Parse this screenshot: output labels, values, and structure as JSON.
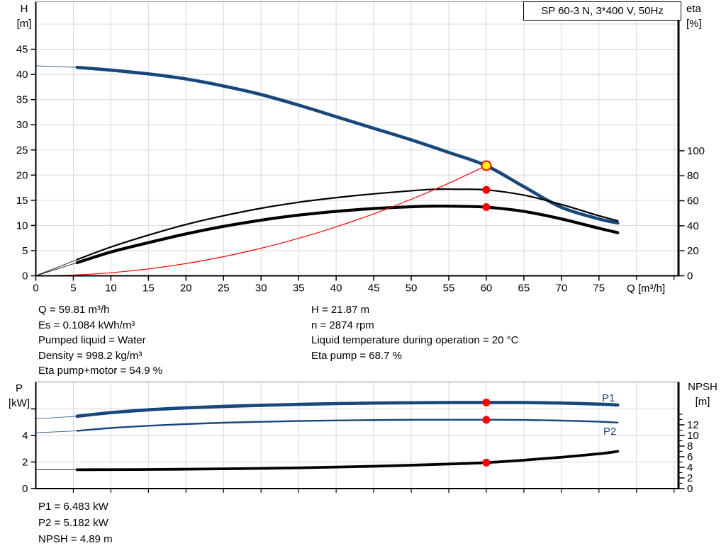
{
  "title_box": {
    "label": "SP 60-3 N, 3*400 V, 50Hz"
  },
  "colors": {
    "blue": "#17477d",
    "black": "#000000",
    "red": "#ff0000",
    "yellow": "#ffff00",
    "grid": "#d8d8d8",
    "border": "#8a8a8a"
  },
  "info_top_left": {
    "lines": [
      "Q = 59.81 m³/h",
      "Es = 0.1084 kWh/m³",
      "Pumped liquid = Water",
      "Density = 998.2 kg/m³",
      "Eta pump+motor = 54.9 %"
    ]
  },
  "info_top_right": {
    "lines": [
      "H = 21.87 m",
      "n = 2874 rpm",
      "Liquid temperature during operation = 20 °C",
      "Eta pump = 68.7 %"
    ]
  },
  "info_bottom": {
    "lines": [
      "P1 = 6.483 kW",
      "P2 = 5.182 kW",
      "NPSH = 4.89 m"
    ]
  },
  "chart_data": [
    {
      "id": "qh-chart",
      "type": "line",
      "title": "SP 60-3 N, 3*400 V, 50Hz",
      "xlabel": "Q [m³/h]",
      "ylabel_left": "H",
      "ylabel_left_unit": "[m]",
      "ylabel_right": "eta",
      "ylabel_right_unit": "[%]",
      "xlim": [
        0,
        85.5
      ],
      "ylim_left": [
        0,
        54.4
      ],
      "ylim_right": [
        0,
        219
      ],
      "x_ticks": [
        0,
        5,
        10,
        15,
        20,
        25,
        30,
        35,
        40,
        45,
        50,
        55,
        60,
        65,
        70,
        75
      ],
      "x_ticks_unlabeled": [
        80,
        85
      ],
      "left_ticks": [
        0,
        5,
        10,
        15,
        20,
        25,
        30,
        35,
        40,
        45
      ],
      "right_ticks": [
        0,
        20,
        40,
        60,
        80,
        100
      ],
      "grid_x": [
        5,
        10,
        15,
        20,
        25,
        30,
        35,
        40,
        45,
        50,
        55,
        60,
        65,
        70,
        75,
        80,
        85
      ],
      "grid_y_left": [
        5,
        10,
        15,
        20,
        25,
        30,
        35,
        40,
        45,
        50
      ],
      "series": [
        {
          "id": "head-curve",
          "name": "H (pump curve)",
          "axis": "left",
          "color": "blue",
          "width": 4.6,
          "lead": [
            [
              0,
              41.7
            ],
            [
              5.5,
              41.4
            ]
          ],
          "points": [
            [
              5.5,
              41.4
            ],
            [
              10,
              40.85
            ],
            [
              15,
              40.1
            ],
            [
              20,
              39.1
            ],
            [
              25,
              37.7
            ],
            [
              30,
              36.0
            ],
            [
              35,
              33.9
            ],
            [
              40,
              31.6
            ],
            [
              45,
              29.3
            ],
            [
              50,
              27.0
            ],
            [
              55,
              24.5
            ],
            [
              60,
              21.87
            ],
            [
              65,
              17.7
            ],
            [
              70,
              13.6
            ],
            [
              75,
              11.3
            ],
            [
              77.5,
              10.5
            ]
          ]
        },
        {
          "id": "eta-pump-curve",
          "name": "Eta pump",
          "axis": "right",
          "color": "black",
          "width": 2.2,
          "lead": [
            [
              0,
              0
            ],
            [
              5.5,
              13
            ]
          ],
          "points": [
            [
              5.5,
              13
            ],
            [
              10,
              23
            ],
            [
              15,
              32.5
            ],
            [
              20,
              41
            ],
            [
              25,
              48
            ],
            [
              30,
              54
            ],
            [
              35,
              58.8
            ],
            [
              40,
              62.5
            ],
            [
              45,
              65.5
            ],
            [
              50,
              68
            ],
            [
              53,
              69.2
            ],
            [
              56,
              69.2
            ],
            [
              60,
              68.7
            ],
            [
              65,
              64.5
            ],
            [
              70,
              57
            ],
            [
              75,
              48
            ],
            [
              77.5,
              44
            ]
          ]
        },
        {
          "id": "eta-pump-motor-curve",
          "name": "Eta pump+motor",
          "axis": "right",
          "color": "black",
          "width": 4.2,
          "lead": [
            [
              0,
              0
            ],
            [
              5.5,
              10.5
            ]
          ],
          "points": [
            [
              5.5,
              10.5
            ],
            [
              10,
              19
            ],
            [
              15,
              26.5
            ],
            [
              20,
              33.5
            ],
            [
              25,
              39.5
            ],
            [
              30,
              44.5
            ],
            [
              35,
              48.5
            ],
            [
              40,
              51.5
            ],
            [
              45,
              53.8
            ],
            [
              50,
              55.2
            ],
            [
              53,
              55.7
            ],
            [
              56,
              55.6
            ],
            [
              60,
              54.9
            ],
            [
              65,
              51.5
            ],
            [
              70,
              45.5
            ],
            [
              75,
              38
            ],
            [
              77.5,
              34.5
            ]
          ]
        },
        {
          "id": "system-curve",
          "name": "System curve",
          "axis": "left",
          "color": "red",
          "width": 1.2,
          "points": [
            [
              0,
              0
            ],
            [
              5,
              0.15
            ],
            [
              10,
              0.61
            ],
            [
              15,
              1.37
            ],
            [
              20,
              2.43
            ],
            [
              25,
              3.8
            ],
            [
              30,
              5.47
            ],
            [
              35,
              7.44
            ],
            [
              40,
              9.72
            ],
            [
              45,
              12.3
            ],
            [
              50,
              15.19
            ],
            [
              55,
              18.38
            ],
            [
              60,
              21.87
            ]
          ]
        }
      ],
      "markers": [
        {
          "id": "duty-point",
          "q": 60,
          "value": 21.87,
          "axis": "left",
          "style": "duty"
        },
        {
          "id": "eta-pump-point",
          "q": 60,
          "value": 68.7,
          "axis": "right",
          "style": "dot"
        },
        {
          "id": "eta-pump-motor-point",
          "q": 60,
          "value": 54.9,
          "axis": "right",
          "style": "dot"
        }
      ]
    },
    {
      "id": "power-npsh-chart",
      "type": "line",
      "xlabel": "",
      "ylabel_left": "P",
      "ylabel_left_unit": "[kW]",
      "ylabel_right": "NPSH",
      "ylabel_right_unit": "[m]",
      "xlim": [
        0,
        85.5
      ],
      "ylim_left": [
        0,
        8
      ],
      "ylim_right": [
        0,
        20
      ],
      "x_ticks": [],
      "x_ticks_unlabeled": [
        5,
        10,
        15,
        20,
        25,
        30,
        35,
        40,
        45,
        50,
        55,
        60,
        65,
        70,
        75,
        80,
        85
      ],
      "left_ticks": [
        0,
        2,
        4
      ],
      "left_ticks_unlabeled": [
        6
      ],
      "right_ticks": [
        0,
        2,
        4,
        6,
        8,
        10,
        12
      ],
      "right_ticks_minor": [
        1,
        3,
        5,
        7,
        9,
        11,
        13,
        14
      ],
      "grid_x": [
        5,
        10,
        15,
        20,
        25,
        30,
        35,
        40,
        45,
        50,
        55,
        60,
        65,
        70,
        75,
        80,
        85
      ],
      "grid_y_left": [
        2,
        4,
        6
      ],
      "series": [
        {
          "id": "p1-curve",
          "name": "P1 (input power)",
          "label": "P1",
          "axis": "left",
          "color": "blue",
          "width": 4.6,
          "lead": [
            [
              0,
              5.25
            ],
            [
              5.5,
              5.45
            ]
          ],
          "points": [
            [
              5.5,
              5.45
            ],
            [
              10,
              5.72
            ],
            [
              15,
              5.93
            ],
            [
              20,
              6.08
            ],
            [
              25,
              6.19
            ],
            [
              30,
              6.27
            ],
            [
              35,
              6.34
            ],
            [
              40,
              6.4
            ],
            [
              45,
              6.44
            ],
            [
              50,
              6.46
            ],
            [
              55,
              6.48
            ],
            [
              60,
              6.483
            ],
            [
              65,
              6.48
            ],
            [
              70,
              6.44
            ],
            [
              75,
              6.36
            ],
            [
              77.5,
              6.3
            ]
          ]
        },
        {
          "id": "p2-curve",
          "name": "P2 (shaft power)",
          "label": "P2",
          "axis": "left",
          "color": "blue",
          "width": 2.4,
          "lead": [
            [
              0,
              4.2
            ],
            [
              5.5,
              4.35
            ]
          ],
          "points": [
            [
              5.5,
              4.35
            ],
            [
              10,
              4.56
            ],
            [
              15,
              4.73
            ],
            [
              20,
              4.86
            ],
            [
              25,
              4.96
            ],
            [
              30,
              5.03
            ],
            [
              35,
              5.09
            ],
            [
              40,
              5.13
            ],
            [
              45,
              5.16
            ],
            [
              50,
              5.18
            ],
            [
              55,
              5.182
            ],
            [
              60,
              5.182
            ],
            [
              65,
              5.17
            ],
            [
              70,
              5.12
            ],
            [
              75,
              5.04
            ],
            [
              77.5,
              4.97
            ]
          ]
        },
        {
          "id": "npsh-curve",
          "name": "NPSH",
          "axis": "right",
          "color": "black",
          "width": 3.8,
          "lead": [
            [
              0,
              3.55
            ],
            [
              5.5,
              3.55
            ]
          ],
          "points": [
            [
              5.5,
              3.55
            ],
            [
              10,
              3.57
            ],
            [
              15,
              3.6
            ],
            [
              20,
              3.65
            ],
            [
              25,
              3.72
            ],
            [
              30,
              3.8
            ],
            [
              35,
              3.9
            ],
            [
              40,
              4.05
            ],
            [
              45,
              4.2
            ],
            [
              50,
              4.4
            ],
            [
              55,
              4.62
            ],
            [
              60,
              4.89
            ],
            [
              65,
              5.35
            ],
            [
              70,
              5.9
            ],
            [
              75,
              6.55
            ],
            [
              77.5,
              7.0
            ]
          ]
        }
      ],
      "markers": [
        {
          "id": "p1-point",
          "q": 60,
          "value": 6.483,
          "axis": "left",
          "style": "dot"
        },
        {
          "id": "p2-point",
          "q": 60,
          "value": 5.182,
          "axis": "left",
          "style": "dot"
        },
        {
          "id": "npsh-point",
          "q": 60,
          "value": 4.89,
          "axis": "right",
          "style": "dot"
        }
      ]
    }
  ]
}
